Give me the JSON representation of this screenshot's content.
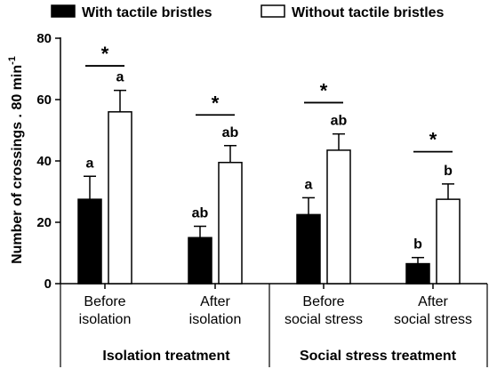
{
  "chart_data": {
    "type": "bar",
    "ylabel": "Number of crossings . 80 min",
    "ylabel_superscript": "-1",
    "ylim": [
      0,
      80
    ],
    "yticks": [
      0,
      20,
      40,
      60,
      80
    ],
    "legend_position": "top",
    "grid": false,
    "series": [
      {
        "name": "With tactile bristles",
        "color": "#000000",
        "fill": "#000000",
        "values": [
          27.5,
          15,
          22.5,
          6.5
        ],
        "errors": [
          7.5,
          3.7,
          5.5,
          2.0
        ],
        "letters": [
          "a",
          "ab",
          "a",
          "b"
        ]
      },
      {
        "name": "Without tactile bristles",
        "color": "#000000",
        "fill": "#ffffff",
        "values": [
          56,
          39.5,
          43.5,
          27.5
        ],
        "errors": [
          7,
          5.5,
          5.3,
          5.0
        ],
        "letters": [
          "a",
          "ab",
          "ab",
          "b"
        ]
      }
    ],
    "categories": [
      {
        "line1": "Before",
        "line2": "isolation"
      },
      {
        "line1": "After",
        "line2": "isolation"
      },
      {
        "line1": "Before",
        "line2": "social stress"
      },
      {
        "line1": "After",
        "line2": "social stress"
      }
    ],
    "significance": [
      {
        "category": 0,
        "level": 71,
        "label": "*"
      },
      {
        "category": 1,
        "level": 55,
        "label": "*"
      },
      {
        "category": 2,
        "level": 59,
        "label": "*"
      },
      {
        "category": 3,
        "level": 43,
        "label": "*"
      }
    ],
    "groups": [
      {
        "label": "Isolation treatment",
        "categories": [
          0,
          1
        ]
      },
      {
        "label": "Social stress treatment",
        "categories": [
          2,
          3
        ]
      }
    ]
  }
}
